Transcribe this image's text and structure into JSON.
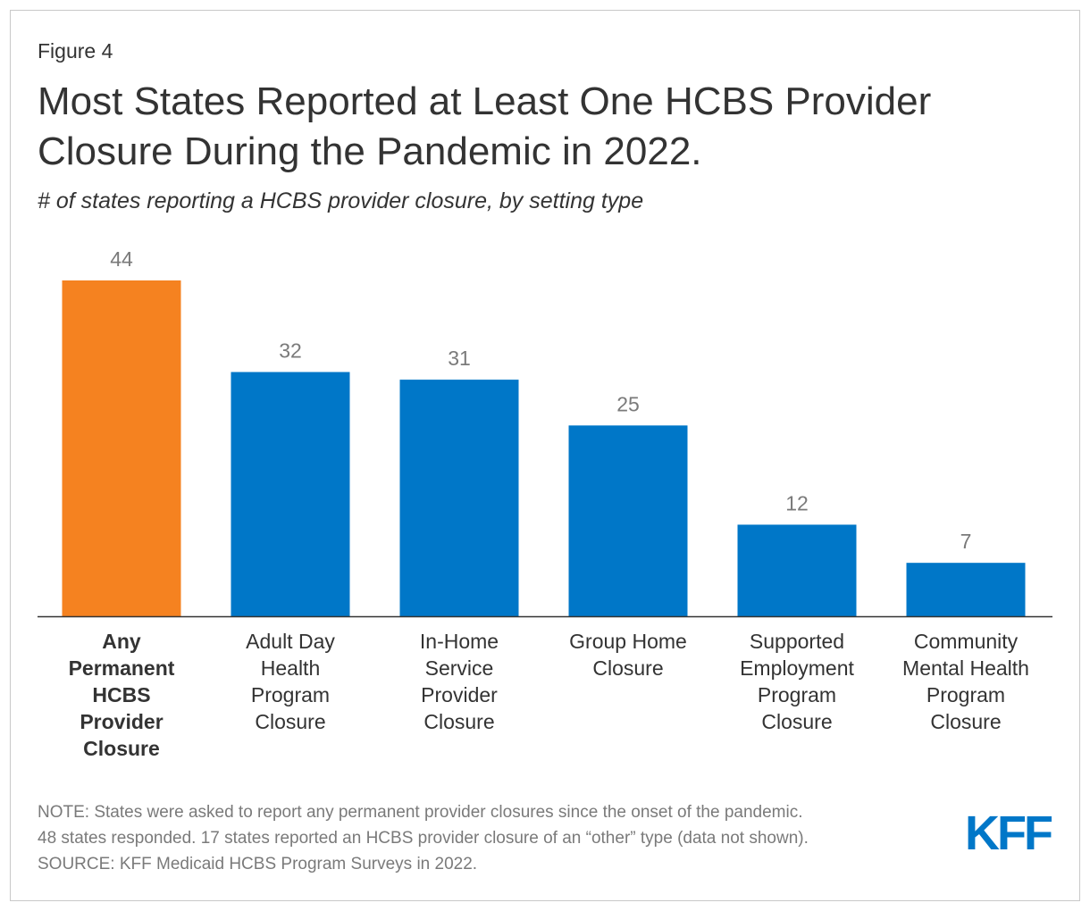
{
  "figure_label": "Figure 4",
  "title_line1": "Most States Reported at Least One HCBS Provider",
  "title_line2": "Closure During the Pandemic in 2022.",
  "subtitle": "# of states reporting a HCBS provider closure, by setting type",
  "chart_data": {
    "type": "bar",
    "categories": [
      "Any Permanent HCBS Provider Closure",
      "Adult Day Health Program Closure",
      "In-Home Service Provider Closure",
      "Group Home Closure",
      "Supported Employment Program Closure",
      "Community Mental Health Program Closure"
    ],
    "category_label_lines": [
      [
        "Any",
        "Permanent",
        "HCBS",
        "Provider",
        "Closure"
      ],
      [
        "Adult Day",
        "Health",
        "Program",
        "Closure"
      ],
      [
        "In-Home",
        "Service",
        "Provider",
        "Closure"
      ],
      [
        "Group Home",
        "Closure"
      ],
      [
        "Supported",
        "Employment",
        "Program",
        "Closure"
      ],
      [
        "Community",
        "Mental Health",
        "Program",
        "Closure"
      ]
    ],
    "values": [
      44,
      32,
      31,
      25,
      12,
      7
    ],
    "highlight_index": 0,
    "colors": {
      "highlight": "#F58220",
      "default": "#0077C8",
      "axis": "#333333",
      "value_label": "#7a7a7a"
    },
    "ylim": [
      0,
      44
    ],
    "xlabel": "",
    "ylabel": "",
    "title": "Most States Reported at Least One HCBS Provider Closure During the Pandemic in 2022."
  },
  "notes": {
    "line1": "NOTE: States were asked to report any permanent provider closures since the onset of the pandemic.",
    "line2": "48 states responded. 17 states reported an HCBS provider closure of an “other” type (data not shown).",
    "line3": "SOURCE: KFF Medicaid HCBS Program Surveys in 2022."
  },
  "logo": {
    "text": "KFF",
    "color": "#0077C8"
  }
}
